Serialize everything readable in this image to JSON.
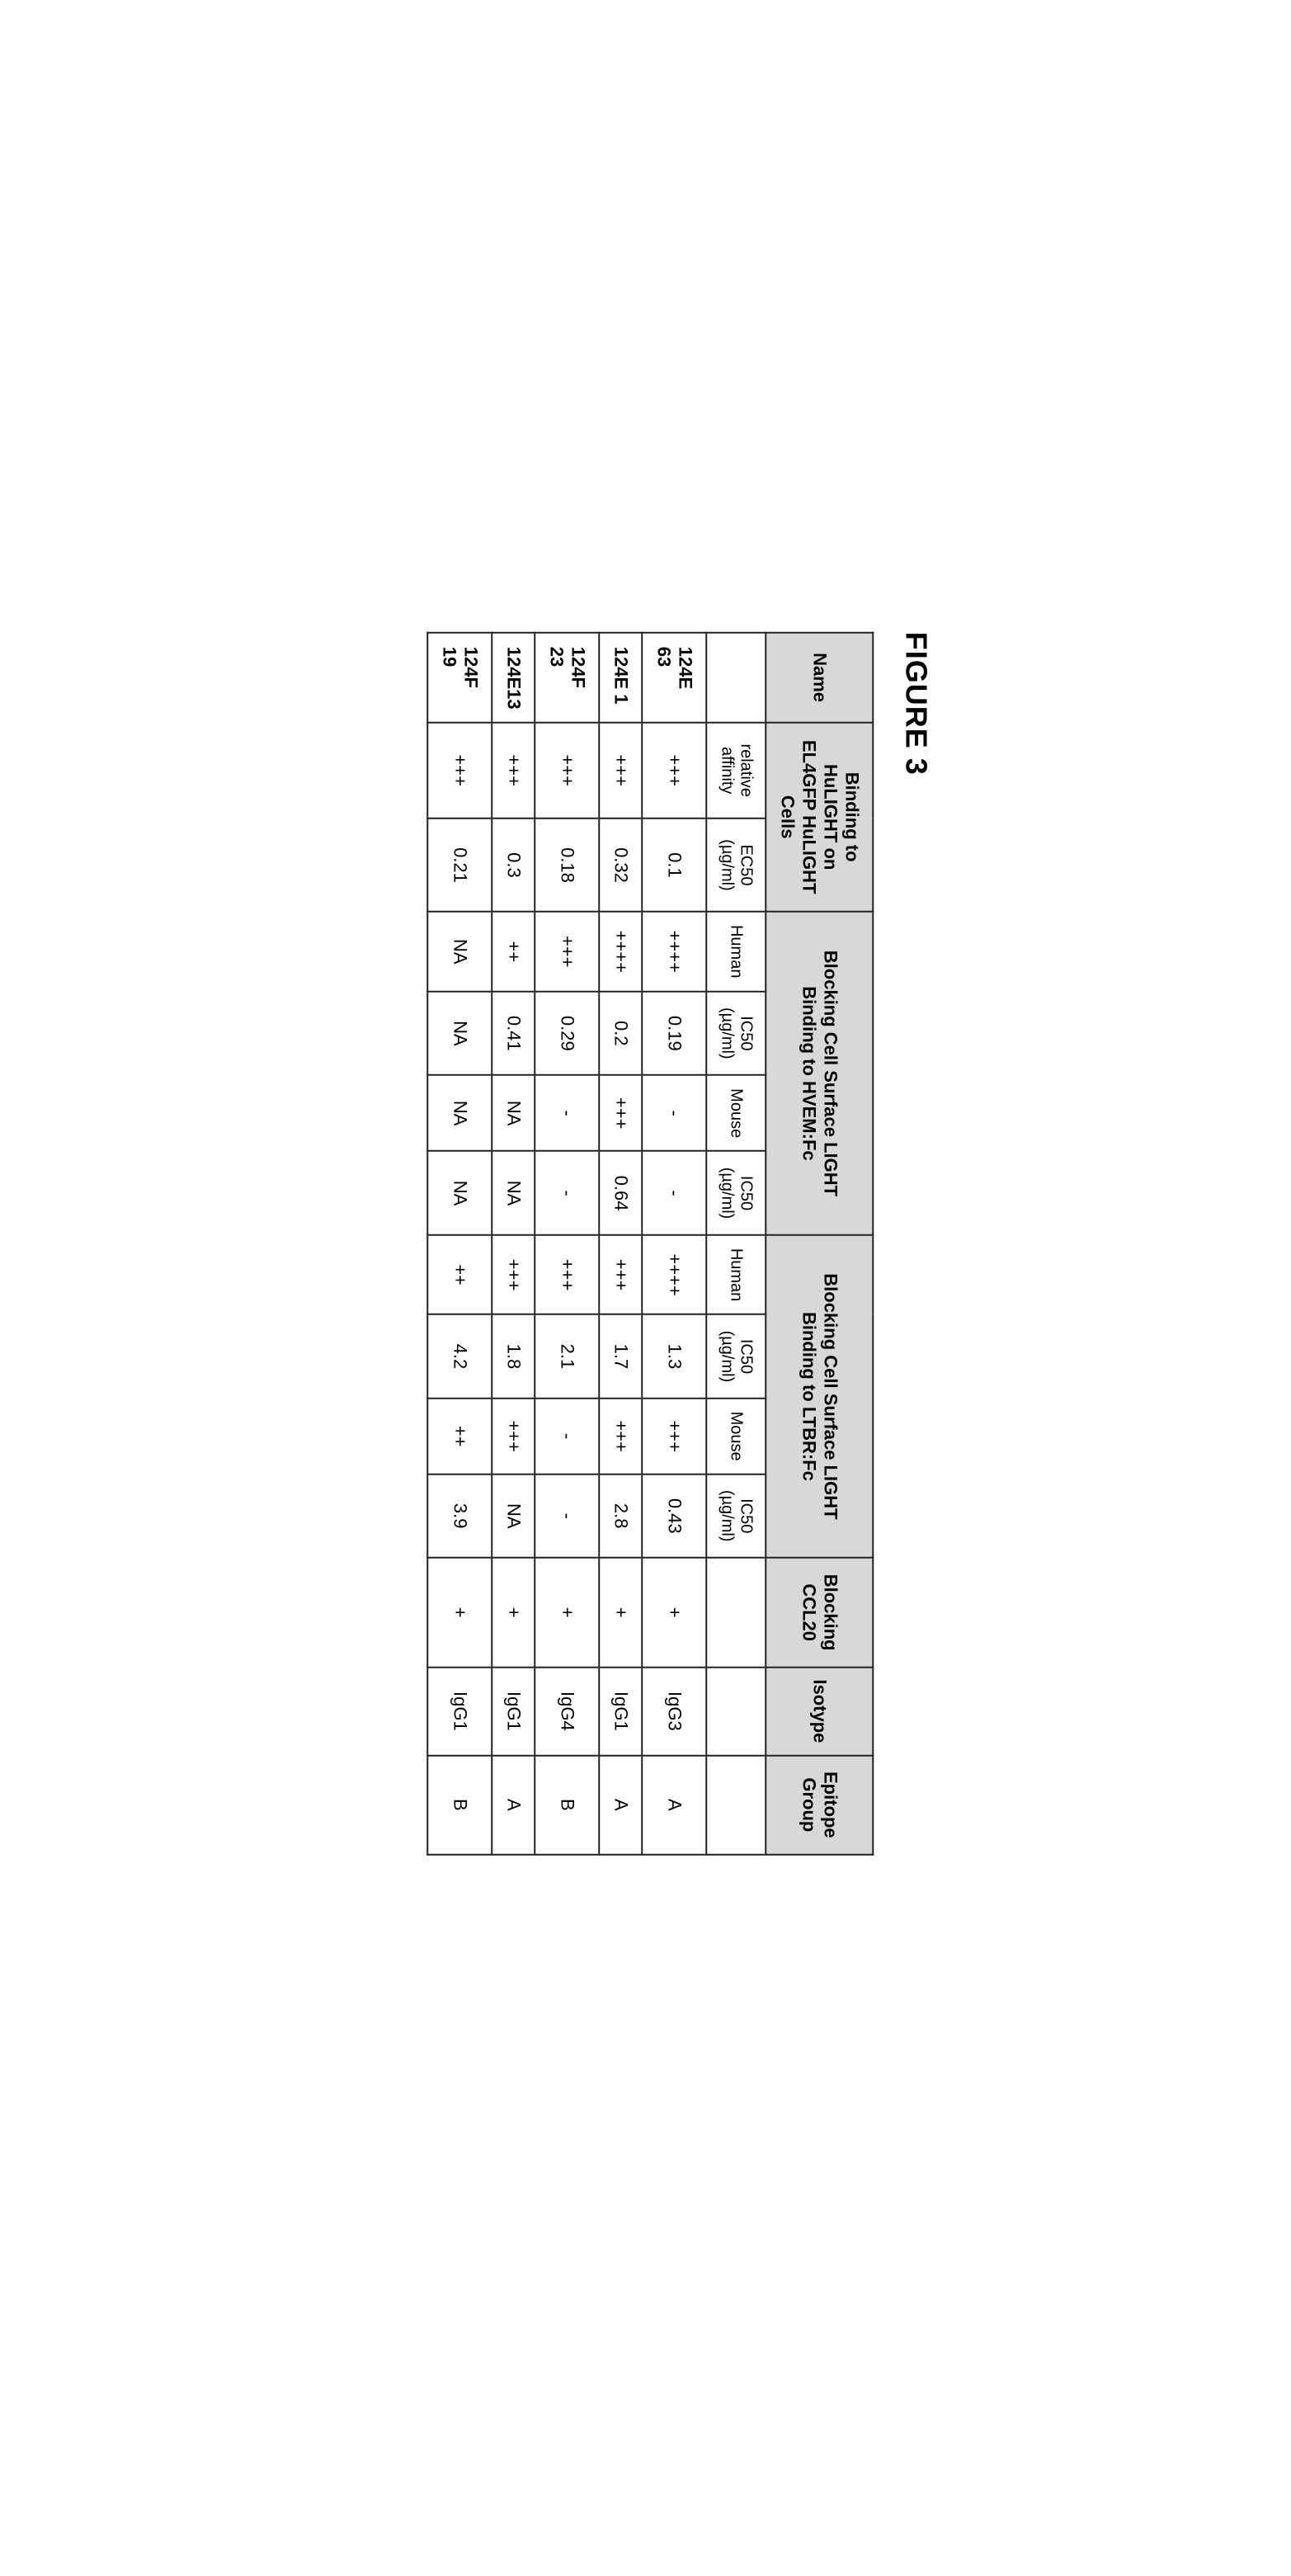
{
  "figure_title": "FIGURE 3",
  "headers": {
    "name": "Name",
    "binding": "Binding to HuLIGHT on EL4GFP HuLIGHT Cells",
    "hvem": "Blocking Cell Surface LIGHT Binding to HVEM:Fc",
    "ltbr": "Blocking Cell Surface LIGHT Binding to LTBR:Fc",
    "ccl20": "Blocking CCL20",
    "isotype": "Isotype",
    "epitope": "Epitope Group"
  },
  "subheaders": {
    "rel_affinity": "relative affinity",
    "ec50": "EC50 (µg/ml)",
    "human": "Human",
    "ic50": "IC50 (µg/ml)",
    "mouse": "Mouse"
  },
  "rows": [
    {
      "name": "124E 63",
      "ra": "+++",
      "ec50": "0.1",
      "h1": "++++",
      "ic1": "0.19",
      "m1": "-",
      "ic2": "-",
      "h2": "++++",
      "ic3": "1.3",
      "m2": "+++",
      "ic4": "0.43",
      "ccl": "+",
      "iso": "IgG3",
      "epi": "A"
    },
    {
      "name": "124E 1",
      "ra": "+++",
      "ec50": "0.32",
      "h1": "++++",
      "ic1": "0.2",
      "m1": "+++",
      "ic2": "0.64",
      "h2": "+++",
      "ic3": "1.7",
      "m2": "+++",
      "ic4": "2.8",
      "ccl": "+",
      "iso": "IgG1",
      "epi": "A"
    },
    {
      "name": "124F 23",
      "ra": "+++",
      "ec50": "0.18",
      "h1": "+++",
      "ic1": "0.29",
      "m1": "-",
      "ic2": "-",
      "h2": "+++",
      "ic3": "2.1",
      "m2": "-",
      "ic4": "-",
      "ccl": "+",
      "iso": "IgG4",
      "epi": "B"
    },
    {
      "name": "124E13",
      "ra": "+++",
      "ec50": "0.3",
      "h1": "++",
      "ic1": "0.41",
      "m1": "NA",
      "ic2": "NA",
      "h2": "+++",
      "ic3": "1.8",
      "m2": "+++",
      "ic4": "NA",
      "ccl": "+",
      "iso": "IgG1",
      "epi": "A"
    },
    {
      "name": "124F 19",
      "ra": "+++",
      "ec50": "0.21",
      "h1": "NA",
      "ic1": "NA",
      "m1": "NA",
      "ic2": "NA",
      "h2": "++",
      "ic3": "4.2",
      "m2": "++",
      "ic4": "3.9",
      "ccl": "+",
      "iso": "IgG1",
      "epi": "B"
    }
  ],
  "styling": {
    "header_bg": "#d8d8d8",
    "border_color": "#222222",
    "font_family": "Arial",
    "title_fontsize": 36,
    "cell_fontsize": 22
  }
}
